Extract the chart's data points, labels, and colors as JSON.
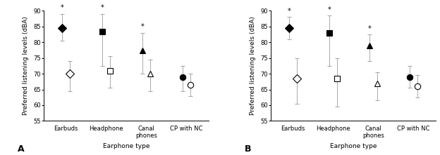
{
  "panels": [
    {
      "label": "A",
      "categories": [
        "Earbuds",
        "Headphone",
        "Canal\nphones",
        "CP with NC"
      ],
      "filled": {
        "values": [
          84.5,
          83.5,
          77.5,
          69.0
        ],
        "yerr_low": [
          4.0,
          11.0,
          7.5,
          4.5
        ],
        "yerr_high": [
          4.5,
          5.5,
          5.5,
          3.5
        ],
        "markers": [
          "D",
          "s",
          "^",
          "o"
        ],
        "asterisk": [
          true,
          true,
          true,
          false
        ]
      },
      "open": {
        "values": [
          70.0,
          71.0,
          70.0,
          66.5
        ],
        "yerr_low": [
          5.5,
          5.5,
          5.5,
          3.5
        ],
        "yerr_high": [
          4.0,
          4.5,
          4.5,
          3.5
        ],
        "markers": [
          "D",
          "s",
          "^",
          "o"
        ]
      }
    },
    {
      "label": "B",
      "categories": [
        "Earbuds",
        "Headphone",
        "Canal\nphones",
        "CP with NC"
      ],
      "filled": {
        "values": [
          84.5,
          83.0,
          79.0,
          69.0
        ],
        "yerr_low": [
          3.5,
          10.5,
          5.0,
          3.5
        ],
        "yerr_high": [
          3.5,
          5.5,
          3.5,
          3.5
        ],
        "markers": [
          "D",
          "s",
          "^",
          "o"
        ],
        "asterisk": [
          true,
          true,
          true,
          false
        ]
      },
      "open": {
        "values": [
          68.5,
          68.5,
          67.0,
          66.0
        ],
        "yerr_low": [
          8.0,
          9.0,
          5.5,
          3.5
        ],
        "yerr_high": [
          6.5,
          6.5,
          3.5,
          3.5
        ],
        "markers": [
          "D",
          "s",
          "^",
          "o"
        ]
      }
    }
  ],
  "ylim": [
    55,
    90
  ],
  "yticks": [
    55,
    60,
    65,
    70,
    75,
    80,
    85,
    90
  ],
  "ylabel": "Preferred listening levels (dBA)",
  "xlabel": "Earphone type",
  "filled_color": "black",
  "open_color": "white",
  "edge_color": "black",
  "marker_size": 6,
  "capsize": 2,
  "elinewidth": 0.7,
  "ecolor": "#aaaaaa",
  "asterisk_fontsize": 7,
  "label_fontsize": 6.5,
  "tick_fontsize": 6,
  "panel_label_fontsize": 9
}
